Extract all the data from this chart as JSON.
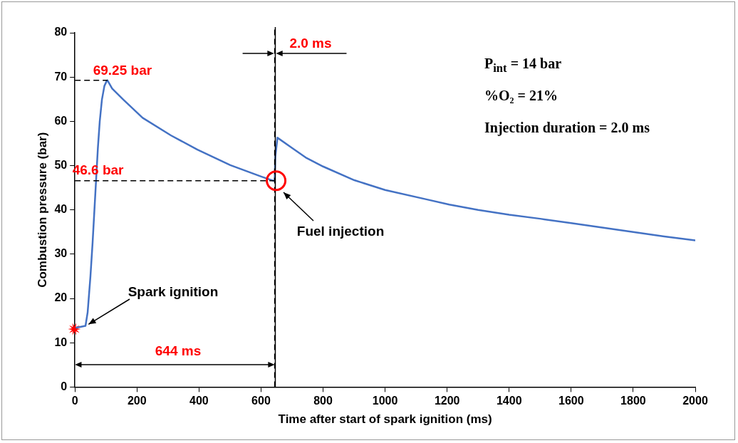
{
  "chart_data": {
    "type": "line",
    "xlabel": "Time after start of spark ignition (ms)",
    "ylabel": "Combustion pressure (bar)",
    "xlim": [
      0,
      2000
    ],
    "xticks": [
      0,
      200,
      400,
      600,
      800,
      1000,
      1200,
      1400,
      1600,
      1800,
      2000
    ],
    "ylim": [
      0,
      80
    ],
    "yticks": [
      0,
      10,
      20,
      30,
      40,
      50,
      60,
      70,
      80
    ],
    "grid": false,
    "legend": false,
    "marker": "none",
    "line_style": "solid",
    "series": [
      {
        "color": "#4472c4",
        "x": [
          5,
          20,
          34,
          41,
          50,
          57,
          66,
          74,
          80,
          87,
          95,
          103,
          105,
          120,
          156,
          218,
          310,
          395,
          501,
          602,
          639,
          644,
          646,
          653,
          700,
          747,
          800,
          901,
          1000,
          1138,
          1207,
          1300,
          1400,
          1500,
          1600,
          1700,
          1800,
          1900,
          2000
        ],
        "values": [
          13.4,
          13.6,
          13.8,
          16.9,
          25,
          32.7,
          44,
          54,
          60,
          64.9,
          68,
          69.2,
          69.25,
          67.4,
          64.9,
          60.8,
          56.8,
          53.6,
          50.1,
          47.5,
          46.6,
          46.6,
          52,
          56.3,
          54,
          51.7,
          49.8,
          46.7,
          44.5,
          42.3,
          41.2,
          40,
          38.9,
          38,
          37,
          36,
          35,
          34,
          33.1
        ]
      }
    ],
    "ref_lines": [
      {
        "axis": "x",
        "value": 644,
        "color": "#000000",
        "line_style": "dashed"
      },
      {
        "axis": "x",
        "value": 646,
        "color": "#000000",
        "line_style": "solid"
      }
    ],
    "annotations": [
      {
        "text": "69.25 bar",
        "x": 105,
        "y": 69.25
      },
      {
        "text": "46.6 bar",
        "x": 644,
        "y": 46.6
      },
      "644 ms",
      "2.0 ms",
      {
        "text": "Spark ignition",
        "x": 37,
        "y": 14
      },
      "Fuel injection",
      "P$_{int}$ = 14 bar",
      "%O₂ = 21%",
      "Injection duration = 2.0 ms"
    ]
  }
}
